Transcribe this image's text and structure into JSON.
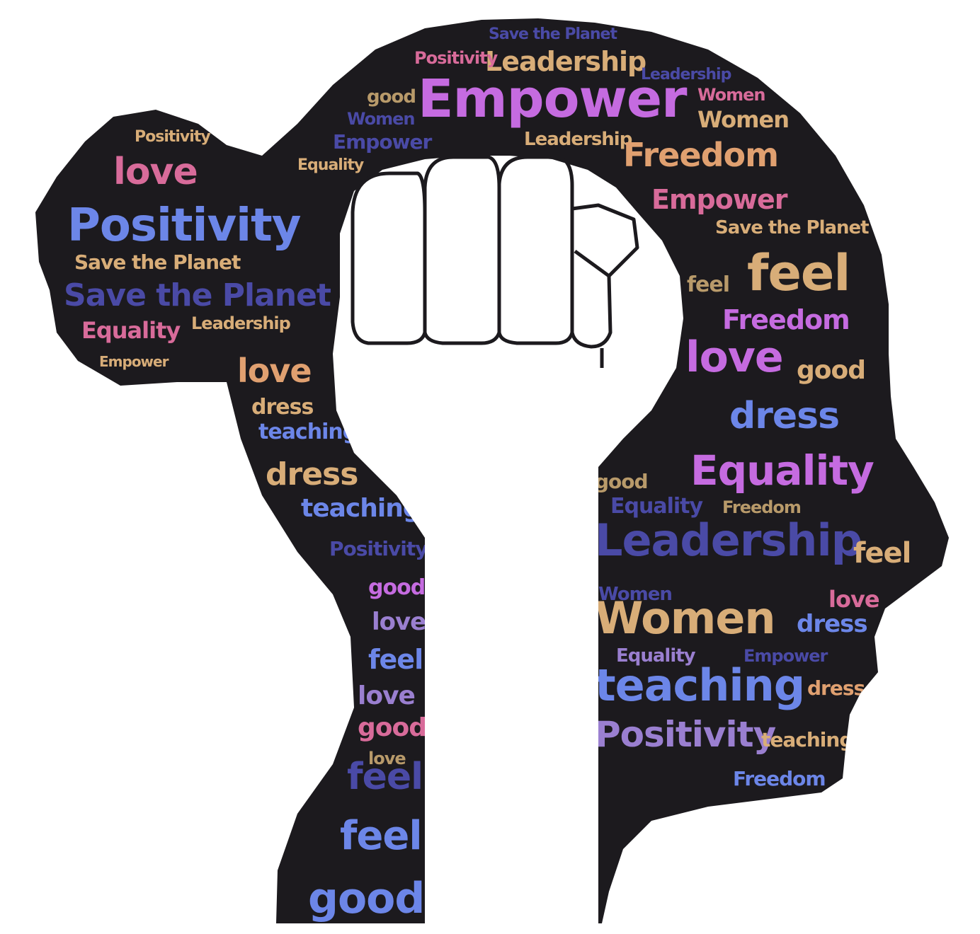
{
  "colors": {
    "silhouette": "#1c1a1e",
    "fist": "#ffffff",
    "fist_outline": "#1c1a1e",
    "background": "#ffffff"
  },
  "palette": {
    "violet": "#c56be0",
    "gold": "#d8ad78",
    "blue": "#6c86e8",
    "pink": "#d86b9a",
    "indigo": "#4a4aa6",
    "lavender": "#9a7fd0",
    "orange": "#e0a070",
    "tan": "#b89a6a"
  },
  "words": [
    {
      "text": "Empower",
      "c": "violet"
    },
    {
      "text": "Leadership",
      "c": "gold"
    },
    {
      "text": "Save the Planet",
      "c": "indigo"
    },
    {
      "text": "Positivity",
      "c": "pink"
    },
    {
      "text": "Leadership",
      "c": "indigo"
    },
    {
      "text": "Women",
      "c": "pink"
    },
    {
      "text": "Women",
      "c": "gold"
    },
    {
      "text": "good",
      "c": "tan"
    },
    {
      "text": "Women",
      "c": "indigo"
    },
    {
      "text": "Empower",
      "c": "indigo"
    },
    {
      "text": "Leadership",
      "c": "gold"
    },
    {
      "text": "Freedom",
      "c": "orange"
    },
    {
      "text": "Empower",
      "c": "pink"
    },
    {
      "text": "Save the Planet",
      "c": "gold"
    },
    {
      "text": "Equality",
      "c": "gold"
    },
    {
      "text": "feel",
      "c": "gold"
    },
    {
      "text": "feel",
      "c": "tan"
    },
    {
      "text": "Freedom",
      "c": "violet"
    },
    {
      "text": "love",
      "c": "violet"
    },
    {
      "text": "good",
      "c": "gold"
    },
    {
      "text": "dress",
      "c": "blue"
    },
    {
      "text": "Equality",
      "c": "violet"
    },
    {
      "text": "good",
      "c": "tan"
    },
    {
      "text": "Equality",
      "c": "indigo"
    },
    {
      "text": "Freedom",
      "c": "tan"
    },
    {
      "text": "Leadership",
      "c": "indigo"
    },
    {
      "text": "feel",
      "c": "gold"
    },
    {
      "text": "Women",
      "c": "indigo"
    },
    {
      "text": "love",
      "c": "pink"
    },
    {
      "text": "Women",
      "c": "gold"
    },
    {
      "text": "dress",
      "c": "blue"
    },
    {
      "text": "Equality",
      "c": "lavender"
    },
    {
      "text": "Empower",
      "c": "indigo"
    },
    {
      "text": "teaching",
      "c": "blue"
    },
    {
      "text": "dress",
      "c": "orange"
    },
    {
      "text": "Positivity",
      "c": "lavender"
    },
    {
      "text": "teaching",
      "c": "gold"
    },
    {
      "text": "Freedom",
      "c": "blue"
    },
    {
      "text": "love",
      "c": "pink"
    },
    {
      "text": "Positivity",
      "c": "blue"
    },
    {
      "text": "Save the Planet",
      "c": "gold"
    },
    {
      "text": "Save the Planet",
      "c": "indigo"
    },
    {
      "text": "Equality",
      "c": "pink"
    },
    {
      "text": "Leadership",
      "c": "gold"
    },
    {
      "text": "Empower",
      "c": "gold"
    },
    {
      "text": "Positivity",
      "c": "gold"
    },
    {
      "text": "love",
      "c": "orange"
    },
    {
      "text": "dress",
      "c": "gold"
    },
    {
      "text": "teaching",
      "c": "blue"
    },
    {
      "text": "dress",
      "c": "gold"
    },
    {
      "text": "teaching",
      "c": "blue"
    },
    {
      "text": "Positivity",
      "c": "indigo"
    },
    {
      "text": "good",
      "c": "violet"
    },
    {
      "text": "love",
      "c": "lavender"
    },
    {
      "text": "feel",
      "c": "blue"
    },
    {
      "text": "love",
      "c": "lavender"
    },
    {
      "text": "good",
      "c": "pink"
    },
    {
      "text": "love",
      "c": "tan"
    },
    {
      "text": "feel",
      "c": "indigo"
    },
    {
      "text": "feel",
      "c": "blue"
    },
    {
      "text": "good",
      "c": "blue"
    }
  ]
}
